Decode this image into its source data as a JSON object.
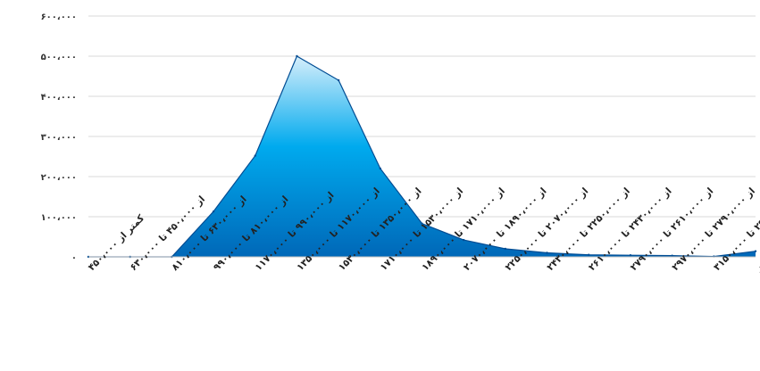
{
  "chart_data": {
    "type": "area",
    "title": "",
    "xlabel": "",
    "ylabel": "",
    "ylim": [
      0,
      600000
    ],
    "yticks": [
      0,
      100000,
      200000,
      300000,
      400000,
      500000,
      600000
    ],
    "ytick_labels": [
      "۰",
      "۱۰۰،۰۰۰",
      "۲۰۰،۰۰۰",
      "۳۰۰،۰۰۰",
      "۴۰۰،۰۰۰",
      "۵۰۰،۰۰۰",
      "۶۰۰،۰۰۰"
    ],
    "grid": true,
    "legend": "none",
    "categories": [
      "کمتر از ۴۵۰،۰۰۰",
      "از ۴۵۰،۰۰۰ تا ۶۳۰،۰۰۰",
      "از ۶۳۰،۰۰۰ تا ۸۱۰،۰۰۰",
      "از ۸۱۰،۰۰۰ تا ۹۹۰،۰۰۰",
      "از ۹۹۰،۰۰۰ تا ۱۱۷۰،۰۰۰",
      "از ۱۱۷۰،۰۰۰ تا ۱۳۵۰،۰۰۰",
      "از ۱۳۵۰،۰۰۰ تا ۱۵۳۰،۰۰۰",
      "از ۱۵۳۰،۰۰۰ تا ۱۷۱۰،۰۰۰",
      "از ۱۷۱۰،۰۰۰ تا ۱۸۹۰،۰۰۰",
      "از ۱۸۹۰،۰۰۰ تا ۲۰۷۰،۰۰۰",
      "از ۲۰۷۰،۰۰۰ تا ۲۲۵۰،۰۰۰",
      "از ۲۲۵۰،۰۰۰ تا ۲۴۳۰،۰۰۰",
      "از ۲۴۳۰،۰۰۰ تا ۲۶۱۰،۰۰۰",
      "از ۲۶۱۰،۰۰۰ تا ۲۷۹۰،۰۰۰",
      "از ۲۷۹۰،۰۰۰ تا ۲۹۷۰،۰۰۰",
      "از ۲۹۷۰،۰۰۰ تا ۳۱۵۰،۰۰۰",
      "از ۳۱۵۰،۰۰۰ و بیشتر"
    ],
    "values": [
      0,
      0,
      0,
      113000,
      252000,
      500000,
      440000,
      220000,
      83000,
      42000,
      20000,
      10000,
      5000,
      4000,
      3000,
      1000,
      14000
    ],
    "colors": {
      "top": "#d6eefb",
      "middle": "#00aaee",
      "bottom": "#0068b8",
      "line": "#004c93"
    }
  }
}
